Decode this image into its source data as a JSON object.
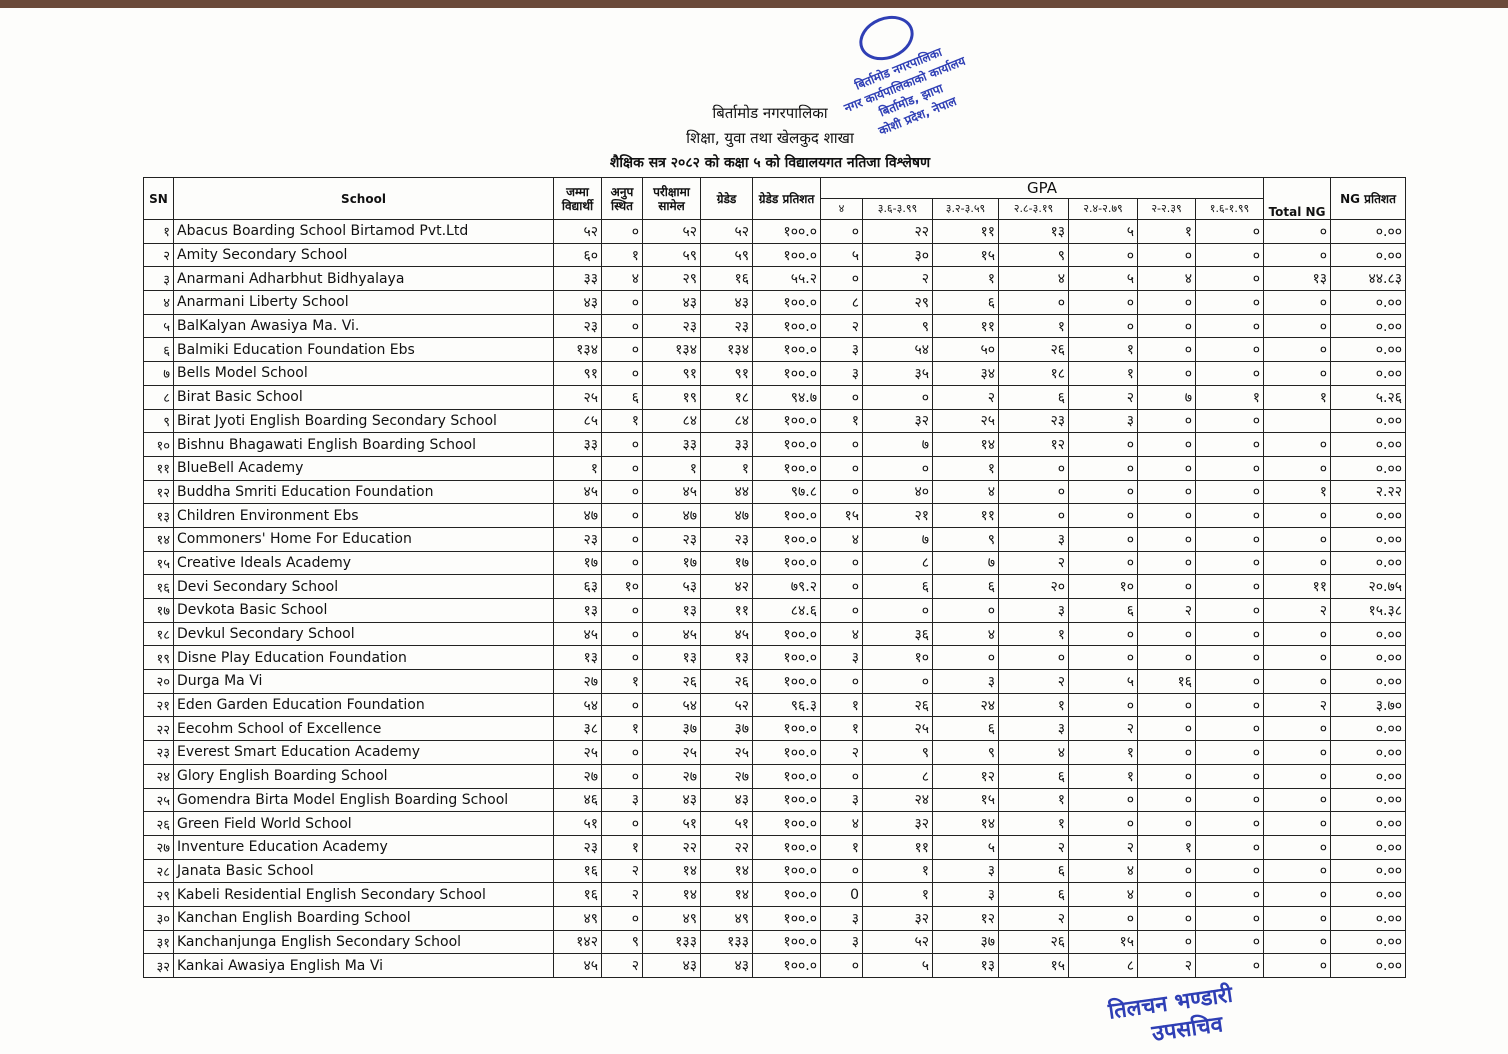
{
  "header": {
    "municipality": "बिर्तामोड नगरपालिका",
    "section": "शिक्षा, युवा तथा खेलकुद शाखा",
    "title": "शैक्षिक सत्र २०८२ को कक्षा ५ को विद्यालयगत नतिजा विश्लेषण"
  },
  "stamp": {
    "line1": "बिर्तामोड नगरपालिका",
    "line2": "नगर कार्यपालिकाको कार्यालय",
    "line3": "बिर्तामोड, झापा",
    "line4": "कोशी प्रदेश, नेपाल"
  },
  "signature": {
    "name": "तिलचन भण्डारी",
    "designation": "उपसचिव"
  },
  "table": {
    "columns": [
      "SN",
      "School",
      "जम्मा विद्यार्थी",
      "अनुप स्थित",
      "परीक्षामा सामेल",
      "ग्रेडेड",
      "ग्रेडेड प्रतिशत"
    ],
    "gpa_label": "GPA",
    "gpa_bands": [
      "४",
      "३.६-३.९९",
      "३.२-३.५९",
      "२.८-३.१९",
      "२.४-२.७९",
      "२-२.३९",
      "१.६-१.९९"
    ],
    "total_ng": "Total NG",
    "ng_percent": "NG प्रतिशत",
    "rows": [
      [
        "१",
        "Abacus Boarding School Birtamod Pvt.Ltd",
        "५२",
        "०",
        "५२",
        "५२",
        "१००.०",
        "०",
        "२२",
        "११",
        "१३",
        "५",
        "१",
        "०",
        "०",
        "०.००"
      ],
      [
        "२",
        "Amity Secondary School",
        "६०",
        "१",
        "५९",
        "५९",
        "१००.०",
        "५",
        "३०",
        "१५",
        "९",
        "०",
        "०",
        "०",
        "०",
        "०.००"
      ],
      [
        "३",
        "Anarmani Adharbhut Bidhyalaya",
        "३३",
        "४",
        "२९",
        "१६",
        "५५.२",
        "०",
        "२",
        "१",
        "४",
        "५",
        "४",
        "०",
        "१३",
        "४४.८३"
      ],
      [
        "४",
        "Anarmani Liberty School",
        "४३",
        "०",
        "४३",
        "४३",
        "१००.०",
        "८",
        "२९",
        "६",
        "०",
        "०",
        "०",
        "०",
        "०",
        "०.००"
      ],
      [
        "५",
        "BalKalyan Awasiya Ma. Vi.",
        "२३",
        "०",
        "२३",
        "२३",
        "१००.०",
        "२",
        "९",
        "११",
        "१",
        "०",
        "०",
        "०",
        "०",
        "०.००"
      ],
      [
        "६",
        "Balmiki Education Foundation Ebs",
        "१३४",
        "०",
        "१३४",
        "१३४",
        "१००.०",
        "३",
        "५४",
        "५०",
        "२६",
        "१",
        "०",
        "०",
        "०",
        "०.००"
      ],
      [
        "७",
        "Bells Model School",
        "९१",
        "०",
        "९१",
        "९१",
        "१००.०",
        "३",
        "३५",
        "३४",
        "१८",
        "१",
        "०",
        "०",
        "०",
        "०.००"
      ],
      [
        "८",
        "Birat Basic School",
        "२५",
        "६",
        "१९",
        "१८",
        "९४.७",
        "०",
        "०",
        "२",
        "६",
        "२",
        "७",
        "१",
        "१",
        "५.२६"
      ],
      [
        "९",
        "Birat Jyoti English Boarding Secondary School",
        "८५",
        "१",
        "८४",
        "८४",
        "१००.०",
        "१",
        "३२",
        "२५",
        "२३",
        "३",
        "०",
        "०",
        null,
        "०.००"
      ],
      [
        "१०",
        "Bishnu Bhagawati English Boarding School",
        "३३",
        "०",
        "३३",
        "३३",
        "१००.०",
        "०",
        "७",
        "१४",
        "१२",
        "०",
        "०",
        "०",
        "०",
        "०.००"
      ],
      [
        "११",
        "BlueBell Academy",
        "१",
        "०",
        "१",
        "१",
        "१००.०",
        "०",
        "०",
        "१",
        "०",
        "०",
        "०",
        "०",
        "०",
        "०.००"
      ],
      [
        "१२",
        "Buddha Smriti Education Foundation",
        "४५",
        "०",
        "४५",
        "४४",
        "९७.८",
        "०",
        "४०",
        "४",
        "०",
        "०",
        "०",
        "०",
        "१",
        "२.२२"
      ],
      [
        "१३",
        "Children Environment Ebs",
        "४७",
        "०",
        "४७",
        "४७",
        "१००.०",
        "१५",
        "२१",
        "११",
        "०",
        "०",
        "०",
        "०",
        "०",
        "०.००"
      ],
      [
        "१४",
        "Commoners' Home For Education",
        "२३",
        "०",
        "२३",
        "२३",
        "१००.०",
        "४",
        "७",
        "९",
        "३",
        "०",
        "०",
        "०",
        "०",
        "०.००"
      ],
      [
        "१५",
        "Creative Ideals Academy",
        "१७",
        "०",
        "१७",
        "१७",
        "१००.०",
        "०",
        "८",
        "७",
        "२",
        "०",
        "०",
        "०",
        "०",
        "०.००"
      ],
      [
        "१६",
        "Devi Secondary School",
        "६३",
        "१०",
        "५३",
        "४२",
        "७९.२",
        "०",
        "६",
        "६",
        "२०",
        "१०",
        "०",
        "०",
        "११",
        "२०.७५"
      ],
      [
        "१७",
        "Devkota Basic School",
        "१३",
        "०",
        "१३",
        "११",
        "८४.६",
        "०",
        "०",
        "०",
        "३",
        "६",
        "२",
        "०",
        "२",
        "१५.३८"
      ],
      [
        "१८",
        "Devkul Secondary School",
        "४५",
        "०",
        "४५",
        "४५",
        "१००.०",
        "४",
        "३६",
        "४",
        "१",
        "०",
        "०",
        "०",
        "०",
        "०.००"
      ],
      [
        "१९",
        "Disne Play Education Foundation",
        "१३",
        "०",
        "१३",
        "१३",
        "१००.०",
        "३",
        "१०",
        "०",
        "०",
        "०",
        "०",
        "०",
        "०",
        "०.००"
      ],
      [
        "२०",
        "Durga Ma Vi",
        "२७",
        "१",
        "२६",
        "२६",
        "१००.०",
        "०",
        "०",
        "३",
        "२",
        "५",
        "१६",
        "०",
        "०",
        "०.००"
      ],
      [
        "२१",
        "Eden Garden Education Foundation",
        "५४",
        "०",
        "५४",
        "५२",
        "९६.३",
        "१",
        "२६",
        "२४",
        "१",
        "०",
        "०",
        "०",
        "२",
        "३.७०"
      ],
      [
        "२२",
        "Eecohm School of Excellence",
        "३८",
        "१",
        "३७",
        "३७",
        "१००.०",
        "१",
        "२५",
        "६",
        "३",
        "२",
        "०",
        "०",
        "०",
        "०.००"
      ],
      [
        "२३",
        "Everest Smart Education Academy",
        "२५",
        "०",
        "२५",
        "२५",
        "१००.०",
        "२",
        "९",
        "९",
        "४",
        "१",
        "०",
        "०",
        "०",
        "०.००"
      ],
      [
        "२४",
        "Glory English Boarding School",
        "२७",
        "०",
        "२७",
        "२७",
        "१००.०",
        "०",
        "८",
        "१२",
        "६",
        "१",
        "०",
        "०",
        "०",
        "०.००"
      ],
      [
        "२५",
        "Gomendra Birta Model English Boarding School",
        "४६",
        "३",
        "४३",
        "४३",
        "१००.०",
        "३",
        "२४",
        "१५",
        "१",
        "०",
        "०",
        "०",
        "०",
        "०.००"
      ],
      [
        "२६",
        "Green Field World School",
        "५१",
        "०",
        "५१",
        "५१",
        "१००.०",
        "४",
        "३२",
        "१४",
        "१",
        "०",
        "०",
        "०",
        "०",
        "०.००"
      ],
      [
        "२७",
        "Inventure Education Academy",
        "२३",
        "१",
        "२२",
        "२२",
        "१००.०",
        "१",
        "११",
        "५",
        "२",
        "२",
        "१",
        "०",
        "०",
        "०.००"
      ],
      [
        "२८",
        "Janata Basic School",
        "१६",
        "२",
        "१४",
        "१४",
        "१००.०",
        "०",
        "१",
        "३",
        "६",
        "४",
        "०",
        "०",
        "०",
        "०.००"
      ],
      [
        "२९",
        "Kabeli Residential English Secondary School",
        "१६",
        "२",
        "१४",
        "१४",
        "१००.०",
        "0",
        "१",
        "३",
        "६",
        "४",
        "०",
        "०",
        "०",
        "०.००"
      ],
      [
        "३०",
        "Kanchan English Boarding School",
        "४९",
        "०",
        "४९",
        "४९",
        "१००.०",
        "३",
        "३२",
        "१२",
        "२",
        "०",
        "०",
        "०",
        "०",
        "०.००"
      ],
      [
        "३१",
        "Kanchanjunga English Secondary School",
        "१४२",
        "९",
        "१३३",
        "१३३",
        "१००.०",
        "३",
        "५२",
        "३७",
        "२६",
        "१५",
        "०",
        "०",
        "०",
        "०.००"
      ],
      [
        "३२",
        "Kankai Awasiya English Ma Vi",
        "४५",
        "२",
        "४३",
        "४३",
        "१००.०",
        "०",
        "५",
        "१३",
        "१५",
        "८",
        "२",
        "०",
        "०",
        "०.००"
      ]
    ]
  }
}
